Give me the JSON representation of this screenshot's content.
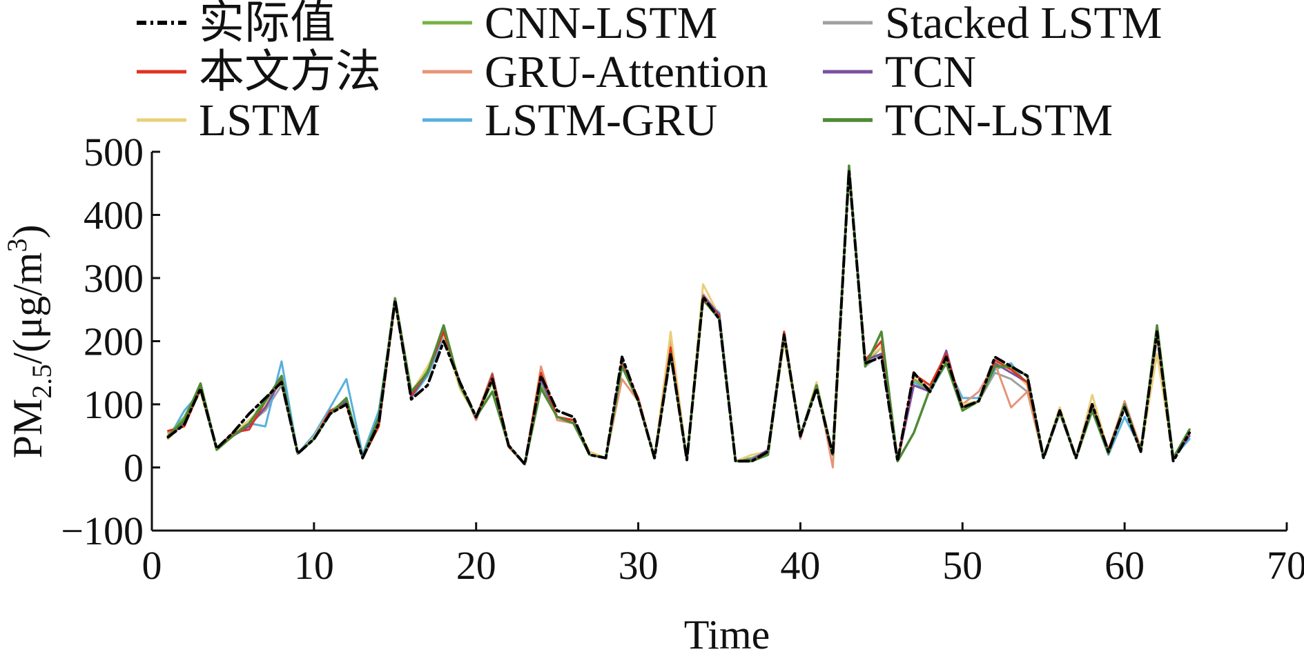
{
  "chart_data": {
    "type": "line",
    "title": "",
    "xlabel": "Time",
    "ylabel_main": "PM",
    "ylabel_sub": "2.5",
    "ylabel_rest": "/(μg/m",
    "ylabel_sup": "3",
    "ylabel_close": ")",
    "xlim": [
      0,
      70
    ],
    "ylim": [
      -100,
      500
    ],
    "xticks": [
      0,
      10,
      20,
      30,
      40,
      50,
      60,
      70
    ],
    "yticks": [
      -100,
      0,
      100,
      200,
      300,
      400,
      500
    ],
    "xtick_labels": [
      "0",
      "10",
      "20",
      "30",
      "40",
      "50",
      "60",
      "70"
    ],
    "ytick_labels": [
      "−100",
      "0",
      "100",
      "200",
      "300",
      "400",
      "500"
    ],
    "grid": false,
    "legend_position": "top",
    "x": [
      1,
      2,
      3,
      4,
      5,
      6,
      7,
      8,
      9,
      10,
      11,
      12,
      13,
      14,
      15,
      16,
      17,
      18,
      19,
      20,
      21,
      22,
      23,
      24,
      25,
      26,
      27,
      28,
      29,
      30,
      31,
      32,
      33,
      34,
      35,
      36,
      37,
      38,
      39,
      40,
      41,
      42,
      43,
      44,
      45,
      46,
      47,
      48,
      49,
      50,
      51,
      52,
      53,
      54,
      55,
      56,
      57,
      58,
      59,
      60,
      61,
      62,
      63,
      64
    ],
    "series": [
      {
        "name": "实际值",
        "color": "#000000",
        "dash": "14,6,4,6",
        "width": 4,
        "values": [
          48,
          68,
          125,
          30,
          55,
          85,
          110,
          135,
          22,
          45,
          85,
          100,
          15,
          70,
          265,
          108,
          130,
          200,
          135,
          80,
          140,
          35,
          5,
          145,
          90,
          80,
          20,
          15,
          175,
          105,
          15,
          180,
          12,
          270,
          235,
          10,
          10,
          25,
          210,
          50,
          125,
          20,
          470,
          165,
          175,
          10,
          150,
          120,
          175,
          95,
          105,
          175,
          160,
          145,
          15,
          90,
          15,
          100,
          25,
          95,
          25,
          215,
          10,
          55
        ]
      },
      {
        "name": "本文方法",
        "color": "#e0321e",
        "dash": "",
        "width": 3,
        "values": [
          58,
          65,
          125,
          30,
          55,
          60,
          105,
          140,
          22,
          45,
          90,
          100,
          15,
          65,
          263,
          115,
          150,
          215,
          135,
          78,
          145,
          33,
          5,
          150,
          80,
          75,
          20,
          15,
          165,
          110,
          15,
          190,
          12,
          265,
          240,
          10,
          10,
          25,
          215,
          50,
          130,
          20,
          470,
          170,
          200,
          10,
          148,
          130,
          180,
          95,
          105,
          170,
          155,
          135,
          15,
          90,
          15,
          95,
          28,
          100,
          28,
          215,
          15,
          55
        ]
      },
      {
        "name": "LSTM",
        "color": "#e8cf7a",
        "dash": "",
        "width": 3,
        "values": [
          45,
          75,
          120,
          30,
          55,
          75,
          100,
          140,
          22,
          48,
          90,
          105,
          15,
          75,
          258,
          118,
          160,
          210,
          125,
          80,
          150,
          35,
          5,
          140,
          80,
          75,
          25,
          15,
          160,
          105,
          15,
          215,
          12,
          290,
          240,
          10,
          20,
          25,
          200,
          50,
          135,
          20,
          470,
          170,
          190,
          10,
          145,
          130,
          170,
          100,
          105,
          165,
          155,
          130,
          15,
          95,
          15,
          115,
          25,
          100,
          25,
          180,
          15,
          60
        ]
      },
      {
        "name": "CNN-LSTM",
        "color": "#77b244",
        "dash": "",
        "width": 3,
        "values": [
          50,
          80,
          130,
          30,
          50,
          70,
          110,
          135,
          22,
          45,
          90,
          105,
          15,
          80,
          265,
          120,
          155,
          220,
          130,
          78,
          135,
          35,
          5,
          130,
          80,
          75,
          20,
          15,
          160,
          105,
          15,
          185,
          12,
          265,
          235,
          10,
          15,
          20,
          210,
          50,
          130,
          20,
          465,
          165,
          190,
          10,
          140,
          120,
          175,
          95,
          105,
          165,
          160,
          130,
          15,
          90,
          15,
          95,
          25,
          100,
          25,
          220,
          15,
          60
        ]
      },
      {
        "name": "GRU-Attention",
        "color": "#e69478",
        "dash": "",
        "width": 3,
        "values": [
          55,
          70,
          125,
          28,
          55,
          65,
          100,
          140,
          22,
          45,
          85,
          100,
          15,
          75,
          265,
          110,
          155,
          215,
          135,
          75,
          140,
          35,
          5,
          160,
          75,
          70,
          20,
          15,
          140,
          105,
          15,
          200,
          12,
          275,
          240,
          10,
          10,
          25,
          215,
          45,
          135,
          0,
          470,
          170,
          180,
          10,
          140,
          125,
          175,
          100,
          120,
          165,
          95,
          120,
          15,
          95,
          15,
          100,
          25,
          105,
          30,
          210,
          15,
          55
        ]
      },
      {
        "name": "LSTM-GRU",
        "color": "#58b0de",
        "dash": "",
        "width": 3,
        "values": [
          45,
          90,
          120,
          28,
          50,
          70,
          65,
          168,
          22,
          52,
          95,
          140,
          20,
          90,
          260,
          110,
          145,
          205,
          135,
          75,
          140,
          35,
          5,
          135,
          80,
          70,
          20,
          15,
          170,
          105,
          15,
          180,
          12,
          270,
          245,
          10,
          15,
          25,
          210,
          50,
          125,
          20,
          478,
          170,
          190,
          10,
          135,
          120,
          165,
          110,
          110,
          155,
          165,
          130,
          15,
          90,
          15,
          90,
          20,
          80,
          30,
          220,
          15,
          45
        ]
      },
      {
        "name": "Stacked LSTM",
        "color": "#a0a0a0",
        "dash": "",
        "width": 3,
        "values": [
          45,
          75,
          120,
          30,
          55,
          70,
          90,
          130,
          22,
          45,
          85,
          105,
          15,
          70,
          262,
          110,
          150,
          210,
          135,
          78,
          140,
          35,
          5,
          135,
          80,
          75,
          20,
          15,
          160,
          105,
          15,
          180,
          12,
          270,
          240,
          10,
          15,
          25,
          210,
          50,
          125,
          20,
          470,
          160,
          180,
          10,
          130,
          120,
          170,
          95,
          105,
          150,
          140,
          120,
          15,
          85,
          15,
          95,
          25,
          95,
          25,
          205,
          15,
          50
        ]
      },
      {
        "name": "TCN",
        "color": "#7a4fa0",
        "dash": "",
        "width": 3,
        "values": [
          48,
          70,
          125,
          28,
          50,
          65,
          95,
          140,
          22,
          45,
          85,
          105,
          18,
          72,
          265,
          112,
          150,
          215,
          135,
          78,
          148,
          33,
          5,
          140,
          80,
          75,
          20,
          15,
          165,
          105,
          15,
          185,
          12,
          272,
          242,
          10,
          12,
          28,
          215,
          48,
          130,
          20,
          472,
          170,
          180,
          10,
          130,
          120,
          185,
          90,
          105,
          165,
          150,
          135,
          15,
          90,
          15,
          100,
          25,
          95,
          28,
          215,
          15,
          50
        ]
      },
      {
        "name": "TCN-LSTM",
        "color": "#4f8a36",
        "dash": "",
        "width": 3.5,
        "values": [
          50,
          75,
          133,
          28,
          50,
          70,
          105,
          145,
          22,
          45,
          85,
          110,
          15,
          80,
          268,
          120,
          150,
          225,
          130,
          80,
          120,
          35,
          5,
          125,
          80,
          70,
          20,
          15,
          160,
          105,
          15,
          180,
          12,
          268,
          235,
          10,
          10,
          20,
          210,
          50,
          130,
          20,
          478,
          160,
          215,
          10,
          55,
          125,
          165,
          90,
          105,
          160,
          160,
          145,
          15,
          90,
          15,
          90,
          22,
          100,
          25,
          225,
          15,
          60
        ]
      }
    ]
  }
}
